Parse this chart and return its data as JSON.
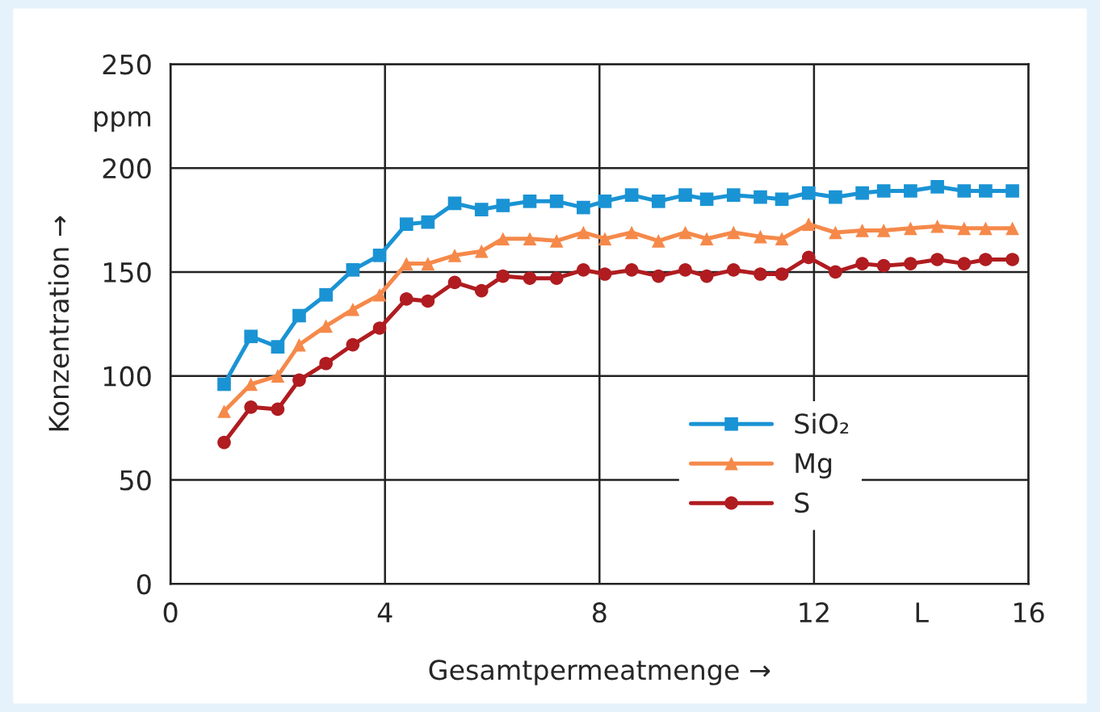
{
  "chart_data": {
    "type": "line",
    "xlabel": "Gesamtpermeatmenge →",
    "ylabel": "Konzentration →",
    "x": [
      1.0,
      1.5,
      2.0,
      2.4,
      2.9,
      3.4,
      3.9,
      4.4,
      4.8,
      5.3,
      5.8,
      6.2,
      6.7,
      7.2,
      7.7,
      8.1,
      8.6,
      9.1,
      9.6,
      10.0,
      10.5,
      11.0,
      11.4,
      11.9,
      12.4,
      12.9,
      13.3,
      13.8,
      14.3,
      14.8,
      15.2,
      15.7
    ],
    "series": [
      {
        "name": "SiO₂",
        "color": "#1a93d4",
        "marker": "square",
        "values": [
          96,
          119,
          114,
          129,
          139,
          151,
          158,
          173,
          174,
          183,
          180,
          182,
          184,
          184,
          181,
          184,
          187,
          184,
          187,
          185,
          187,
          186,
          185,
          188,
          186,
          188,
          189,
          189,
          191,
          189,
          189,
          189
        ]
      },
      {
        "name": "Mg",
        "color": "#f5894a",
        "marker": "triangle",
        "values": [
          83,
          96,
          100,
          115,
          124,
          132,
          139,
          154,
          154,
          158,
          160,
          166,
          166,
          165,
          169,
          166,
          169,
          165,
          169,
          166,
          169,
          167,
          166,
          173,
          169,
          170,
          170,
          171,
          172,
          171,
          171,
          171
        ]
      },
      {
        "name": "S",
        "color": "#b01c20",
        "marker": "circle",
        "values": [
          68,
          85,
          84,
          98,
          106,
          115,
          123,
          137,
          136,
          145,
          141,
          148,
          147,
          147,
          151,
          149,
          151,
          148,
          151,
          148,
          151,
          149,
          149,
          157,
          150,
          154,
          153,
          154,
          156,
          154,
          156,
          156
        ]
      }
    ],
    "xlim": [
      0,
      16
    ],
    "xticks": [
      0,
      4,
      8,
      12,
      {
        "value": 14,
        "label": "L"
      },
      16
    ],
    "ylim": [
      0,
      250
    ],
    "yticks": [
      0,
      50,
      100,
      150,
      200,
      {
        "value": 225,
        "label": "ppm"
      },
      250
    ],
    "grid": true,
    "legend": "lower right",
    "line_style": "solid"
  }
}
